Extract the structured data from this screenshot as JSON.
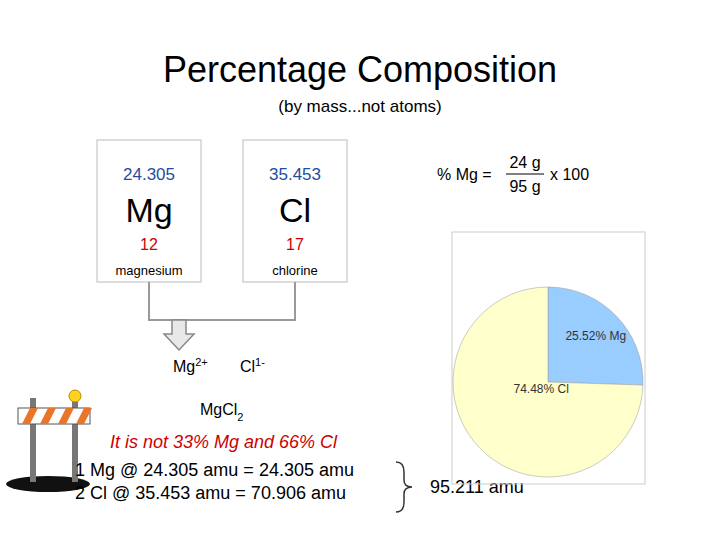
{
  "title": "Percentage Composition",
  "subtitle": "(by mass...not atoms)",
  "elements": [
    {
      "mass": 24.305,
      "symbol": "Mg",
      "number": 12,
      "name": "magnesium"
    },
    {
      "mass": 35.453,
      "symbol": "Cl",
      "number": 17,
      "name": "chlorine"
    }
  ],
  "ions": [
    {
      "symbol": "Mg",
      "charge": "2+"
    },
    {
      "symbol": "Cl",
      "charge": "1-"
    }
  ],
  "compound": {
    "formula": "MgCl",
    "subscript": "2"
  },
  "warning": "It is not 33% Mg and 66% Cl",
  "calculation": {
    "lines": [
      "1 Mg @ 24.305 amu = 24.305 amu",
      "2 Cl @ 35.453 amu = 70.906 amu"
    ],
    "total": "95.211 amu"
  },
  "formula": {
    "left": "% Mg =",
    "numerator": "24 g",
    "denominator": "95 g",
    "right": "x 100"
  },
  "chart_data": {
    "type": "pie",
    "categories": [
      "Mg",
      "Cl"
    ],
    "values": [
      25.52,
      74.48
    ],
    "colors": [
      "#99ccff",
      "#ffffcc"
    ],
    "data_labels": true,
    "value_labels": [
      "25.52% Mg",
      "74.48% Cl"
    ]
  }
}
